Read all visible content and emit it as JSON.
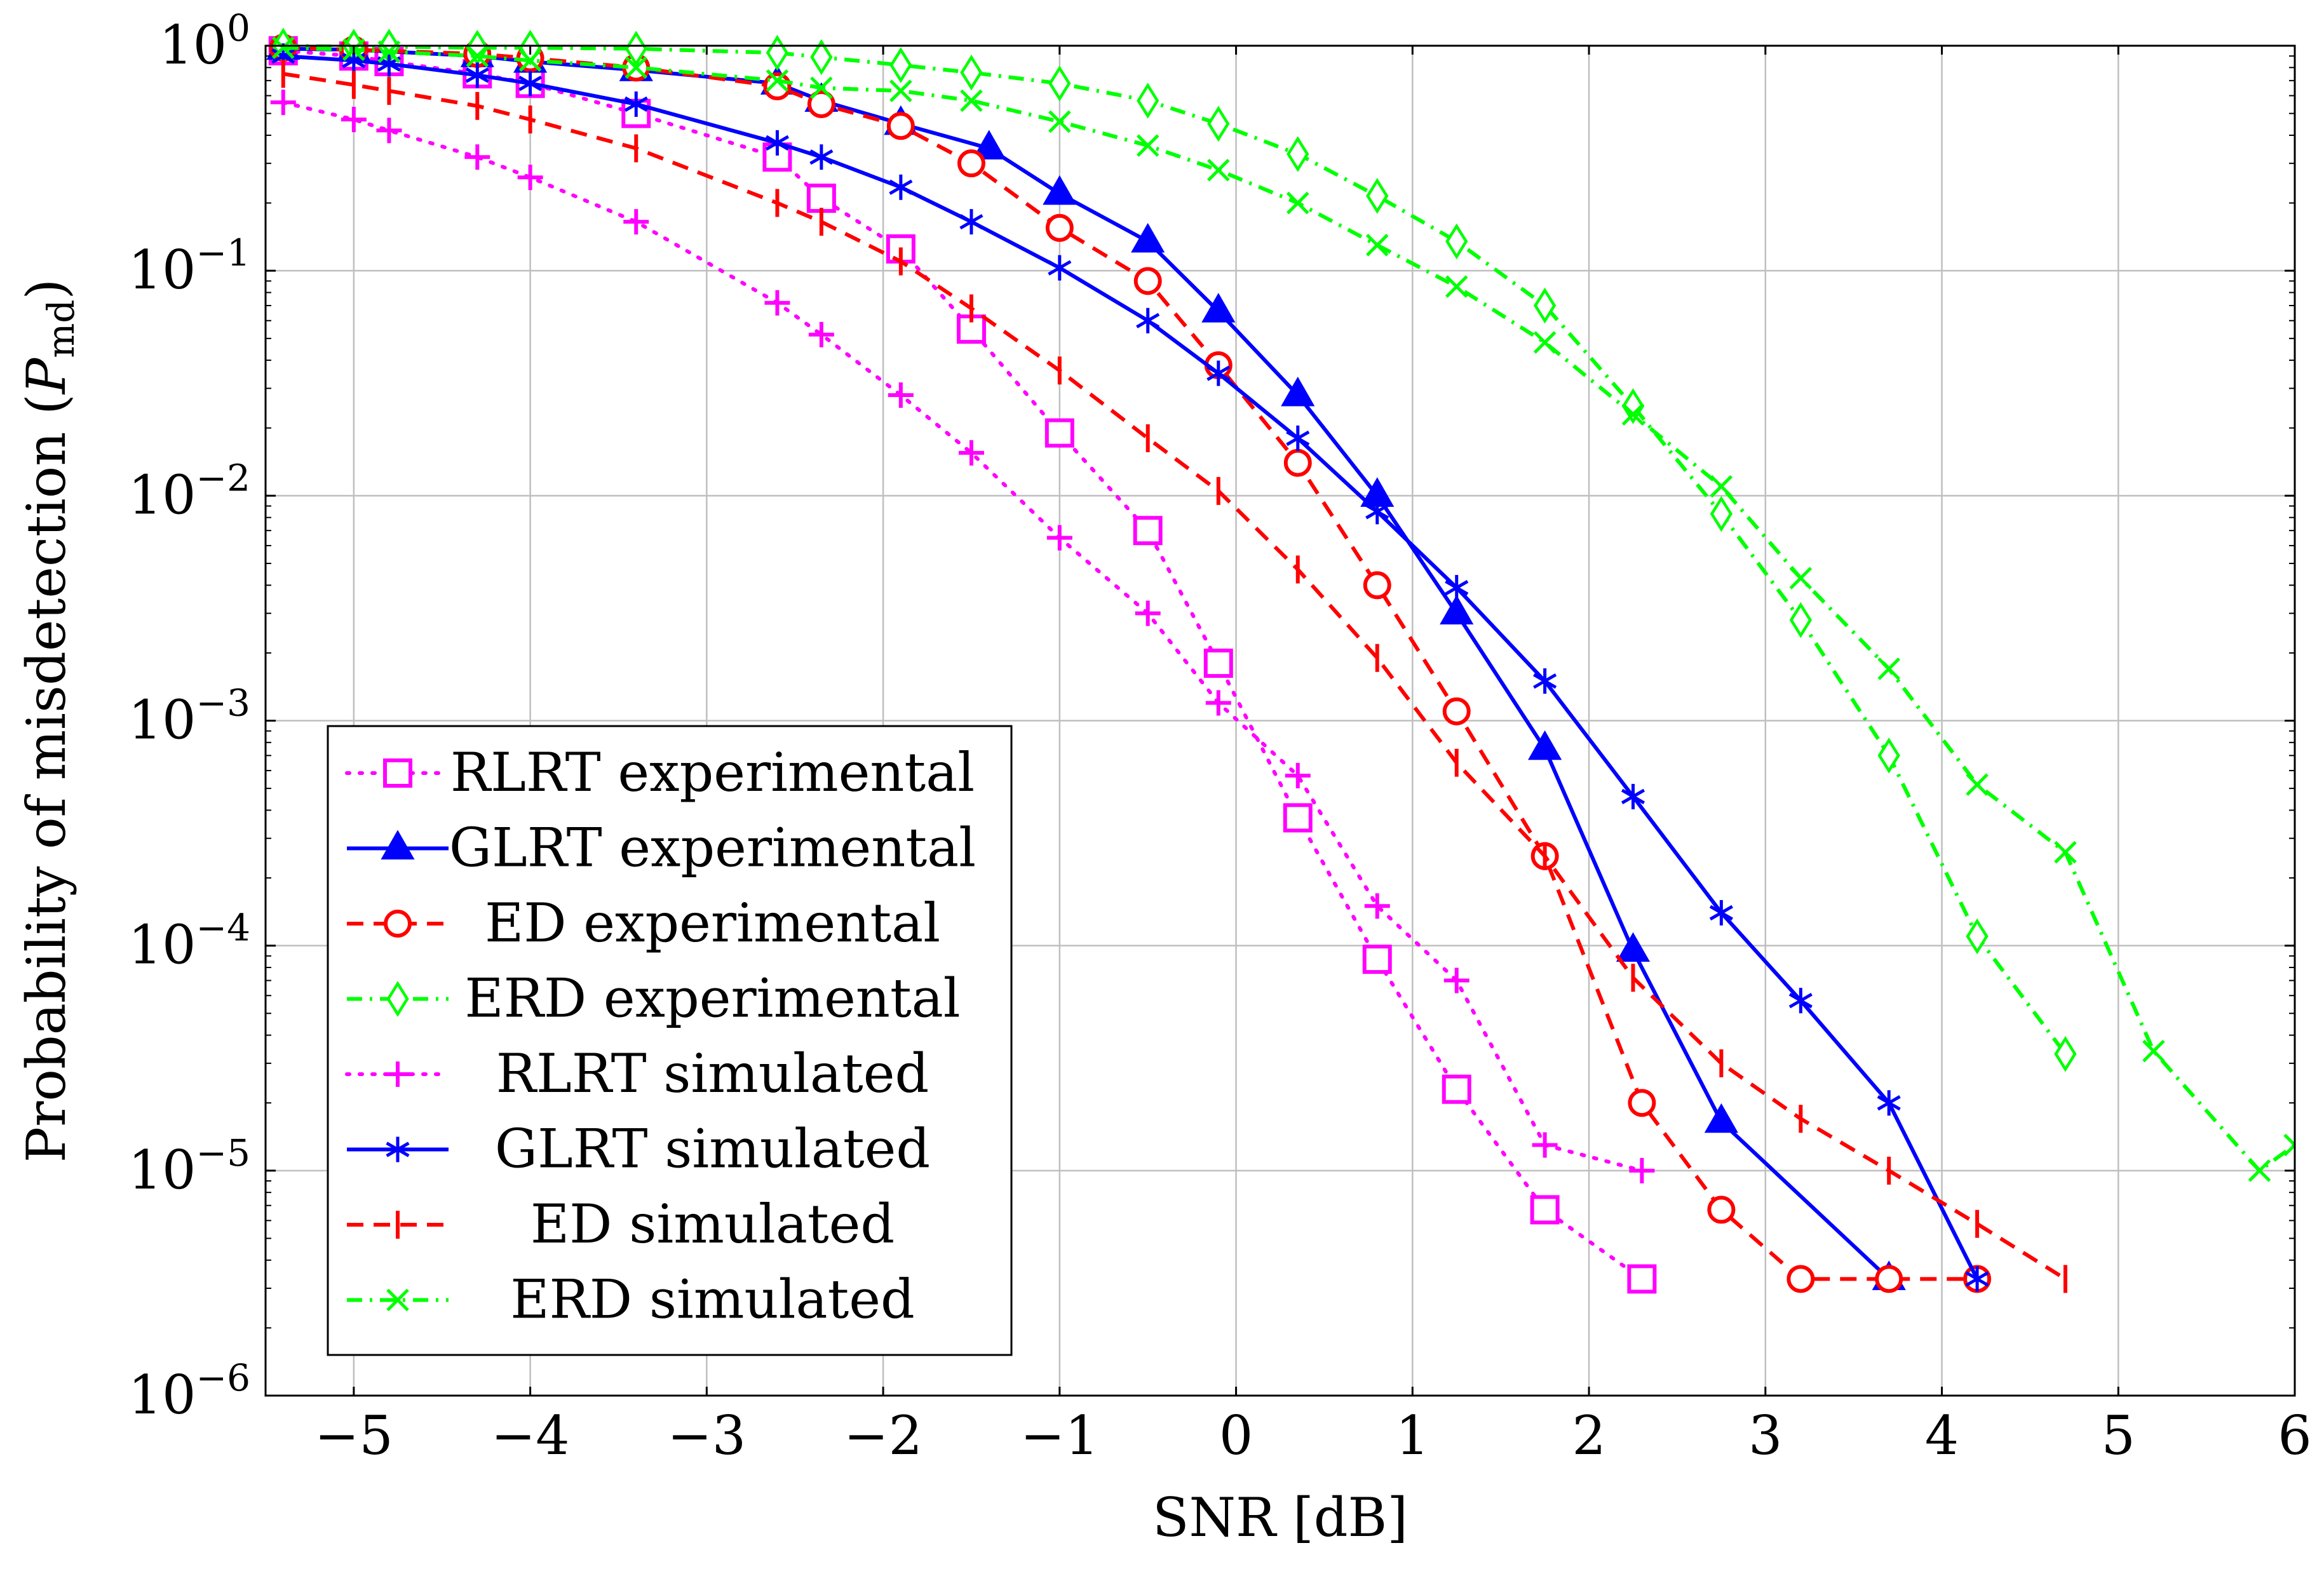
{
  "chart_data": {
    "type": "line",
    "xlabel": "SNR [dB]",
    "ylabel_text": "Probability of misdetection ",
    "ylabel_symbol": "P",
    "ylabel_subscript": "md",
    "ylabel_close": ")",
    "ylabel_open": "(",
    "xlim": [
      -5.5,
      6
    ],
    "ylim": [
      1e-06,
      1
    ],
    "yscale": "log",
    "grid": true,
    "legend_position": "lower-left",
    "x_ticks": [
      -5,
      -4,
      -3,
      -2,
      -1,
      0,
      1,
      2,
      3,
      4,
      5,
      6
    ],
    "x_tick_labels": [
      "−5",
      "−4",
      "−3",
      "−2",
      "−1",
      "0",
      "1",
      "2",
      "3",
      "4",
      "5",
      "6"
    ],
    "y_ticks": [
      {
        "value": 1,
        "base": "10",
        "exp": "0"
      },
      {
        "value": 0.1,
        "base": "10",
        "exp": "−1"
      },
      {
        "value": 0.01,
        "base": "10",
        "exp": "−2"
      },
      {
        "value": 0.001,
        "base": "10",
        "exp": "−3"
      },
      {
        "value": 0.0001,
        "base": "10",
        "exp": "−4"
      },
      {
        "value": 1e-05,
        "base": "10",
        "exp": "−5"
      },
      {
        "value": 1e-06,
        "base": "10",
        "exp": "−6"
      }
    ],
    "series": [
      {
        "name": "RLRT experimental",
        "color": "#ff00ff",
        "dash": "dotted",
        "marker": "square",
        "x": [
          -5.4,
          -5.0,
          -4.8,
          -4.3,
          -4.0,
          -3.4,
          -2.6,
          -2.35,
          -1.9,
          -1.5,
          -1.0,
          -0.5,
          -0.1,
          0.35,
          0.8,
          1.25,
          1.75,
          2.3
        ],
        "y": [
          0.95,
          0.9,
          0.85,
          0.75,
          0.68,
          0.5,
          0.32,
          0.21,
          0.125,
          0.055,
          0.019,
          0.007,
          0.0018,
          0.00037,
          8.7e-05,
          2.3e-05,
          6.7e-06,
          3.3e-06
        ]
      },
      {
        "name": "GLRT experimental",
        "color": "#0000ff",
        "dash": "solid",
        "marker": "triangle",
        "x": [
          -5.4,
          -5.0,
          -4.3,
          -4.0,
          -3.4,
          -2.6,
          -2.35,
          -1.9,
          -1.4,
          -1.0,
          -0.5,
          -0.1,
          0.35,
          0.8,
          1.25,
          1.75,
          2.25,
          2.75,
          3.7
        ],
        "y": [
          0.97,
          0.96,
          0.9,
          0.85,
          0.78,
          0.68,
          0.57,
          0.45,
          0.35,
          0.22,
          0.135,
          0.066,
          0.028,
          0.01,
          0.003,
          0.00075,
          9.5e-05,
          1.65e-05,
          3.3e-06
        ]
      },
      {
        "name": "ED experimental",
        "color": "#ff0000",
        "dash": "dashed",
        "marker": "circle",
        "x": [
          -5.4,
          -5.0,
          -4.3,
          -4.0,
          -3.4,
          -2.6,
          -2.35,
          -1.9,
          -1.5,
          -1.0,
          -0.5,
          -0.1,
          0.35,
          0.8,
          1.25,
          1.75,
          2.3,
          2.75,
          3.2,
          3.7,
          4.2
        ],
        "y": [
          0.98,
          0.96,
          0.92,
          0.88,
          0.8,
          0.66,
          0.55,
          0.44,
          0.3,
          0.155,
          0.09,
          0.038,
          0.014,
          0.004,
          0.0011,
          0.00025,
          2e-05,
          6.7e-06,
          3.3e-06,
          3.3e-06,
          3.3e-06
        ]
      },
      {
        "name": "ERD experimental",
        "color": "#00ff00",
        "dash": "dashdot",
        "marker": "diamond",
        "x": [
          -5.4,
          -5.0,
          -4.8,
          -4.3,
          -4.0,
          -3.4,
          -2.6,
          -2.35,
          -1.9,
          -1.5,
          -1.0,
          -0.5,
          -0.1,
          0.35,
          0.8,
          1.25,
          1.75,
          2.25,
          2.75,
          3.2,
          3.7,
          4.2,
          4.7
        ],
        "y": [
          1.0,
          0.99,
          0.99,
          0.98,
          0.98,
          0.97,
          0.93,
          0.89,
          0.82,
          0.76,
          0.68,
          0.57,
          0.45,
          0.33,
          0.215,
          0.135,
          0.07,
          0.025,
          0.0083,
          0.0028,
          0.0007,
          0.00011,
          3.3e-05
        ]
      },
      {
        "name": "RLRT simulated",
        "color": "#ff00ff",
        "dash": "dotted",
        "marker": "plus",
        "x": [
          -5.4,
          -5.0,
          -4.8,
          -4.3,
          -4.0,
          -3.4,
          -2.6,
          -2.35,
          -1.9,
          -1.5,
          -1.0,
          -0.5,
          -0.1,
          0.35,
          0.8,
          1.25,
          1.75,
          2.3
        ],
        "y": [
          0.56,
          0.47,
          0.42,
          0.32,
          0.26,
          0.165,
          0.072,
          0.052,
          0.028,
          0.0155,
          0.0065,
          0.003,
          0.0012,
          0.00057,
          0.00015,
          7e-05,
          1.3e-05,
          1e-05
        ]
      },
      {
        "name": "GLRT simulated",
        "color": "#0000ff",
        "dash": "solid",
        "marker": "asterisk",
        "x": [
          -5.4,
          -5.0,
          -4.8,
          -4.3,
          -4.0,
          -3.4,
          -2.6,
          -2.35,
          -1.9,
          -1.5,
          -1.0,
          -0.5,
          -0.1,
          0.35,
          0.8,
          1.25,
          1.75,
          2.25,
          2.75,
          3.2,
          3.7,
          4.2
        ],
        "y": [
          0.9,
          0.86,
          0.83,
          0.74,
          0.68,
          0.55,
          0.37,
          0.32,
          0.235,
          0.165,
          0.103,
          0.06,
          0.035,
          0.018,
          0.0085,
          0.0039,
          0.0015,
          0.00046,
          0.00014,
          5.7e-05,
          2e-05,
          3.3e-06
        ]
      },
      {
        "name": "ED simulated",
        "color": "#ff0000",
        "dash": "dashed",
        "marker": "tick",
        "x": [
          -5.4,
          -5.0,
          -4.8,
          -4.3,
          -4.0,
          -3.4,
          -2.6,
          -2.35,
          -1.9,
          -1.5,
          -1.0,
          -0.5,
          -0.1,
          0.35,
          0.8,
          1.25,
          1.75,
          2.25,
          2.75,
          3.2,
          3.7,
          4.2,
          4.7
        ],
        "y": [
          0.75,
          0.67,
          0.63,
          0.54,
          0.47,
          0.35,
          0.2,
          0.165,
          0.11,
          0.068,
          0.036,
          0.018,
          0.0105,
          0.0047,
          0.0019,
          0.00065,
          0.00025,
          7.2e-05,
          3e-05,
          1.7e-05,
          1e-05,
          5.8e-06,
          3.3e-06
        ]
      },
      {
        "name": "ERD simulated",
        "color": "#00ff00",
        "dash": "dashdot",
        "marker": "cross",
        "x": [
          -5.4,
          -5.0,
          -4.8,
          -4.3,
          -4.0,
          -3.4,
          -2.6,
          -2.35,
          -1.9,
          -1.5,
          -1.0,
          -0.5,
          -0.1,
          0.35,
          0.8,
          1.25,
          1.75,
          2.25,
          2.75,
          3.2,
          3.7,
          4.2,
          4.7,
          5.2,
          5.8,
          6.0
        ],
        "y": [
          0.98,
          0.96,
          0.94,
          0.9,
          0.86,
          0.8,
          0.7,
          0.65,
          0.63,
          0.57,
          0.46,
          0.36,
          0.28,
          0.2,
          0.13,
          0.085,
          0.048,
          0.023,
          0.011,
          0.0043,
          0.0017,
          0.00052,
          0.00026,
          3.4e-05,
          1e-05,
          1.3e-05
        ]
      }
    ]
  }
}
